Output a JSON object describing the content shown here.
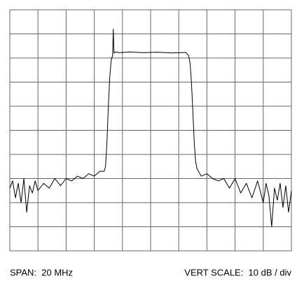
{
  "chart_data": {
    "type": "line",
    "span_label": "SPAN:  20 MHz",
    "scale_label": "VERT SCALE:  10 dB / div",
    "x": [
      -10,
      -9.8,
      -9.6,
      -9.4,
      -9.2,
      -9.0,
      -8.8,
      -8.6,
      -8.4,
      -8.2,
      -8.0,
      -7.6,
      -7.2,
      -6.8,
      -6.4,
      -6.0,
      -5.6,
      -5.2,
      -4.8,
      -4.4,
      -4.0,
      -3.6,
      -3.3,
      -3.2,
      -3.1,
      -3.0,
      -2.9,
      -2.8,
      -2.7,
      -2.65,
      -2.6,
      -2.5,
      -2.2,
      -1.5,
      -0.5,
      0.5,
      1.5,
      2.5,
      2.7,
      2.8,
      2.9,
      3.0,
      3.1,
      3.2,
      3.3,
      3.4,
      3.6,
      4.0,
      4.4,
      4.8,
      5.2,
      5.6,
      6.0,
      6.4,
      6.8,
      7.2,
      7.6,
      8.0,
      8.2,
      8.4,
      8.6,
      8.8,
      9.0,
      9.2,
      9.4,
      9.6,
      9.8,
      10
    ],
    "values": [
      -74,
      -71,
      -78,
      -72,
      -80,
      -70,
      -84,
      -73,
      -76,
      -71,
      -75,
      -72,
      -74,
      -70,
      -73,
      -70,
      -71,
      -69,
      -70,
      -68,
      -69,
      -67,
      -67,
      -65,
      -55,
      -40,
      -28,
      -21,
      -19,
      -8,
      -18,
      -17.5,
      -17.8,
      -17.5,
      -17.8,
      -17.6,
      -17.9,
      -17.7,
      -19,
      -22,
      -30,
      -42,
      -55,
      -63,
      -66,
      -67,
      -69,
      -68,
      -70,
      -71,
      -70,
      -74,
      -70,
      -76,
      -72,
      -78,
      -71,
      -80,
      -72,
      -77,
      -90,
      -74,
      -79,
      -72,
      -82,
      -73,
      -84,
      -75
    ],
    "color": "#000000",
    "xlim": [
      -10,
      10
    ],
    "xticks": [
      -10,
      -8,
      -6,
      -4,
      -2,
      0,
      2,
      4,
      6,
      8,
      10
    ],
    "ylim": [
      -100,
      0
    ],
    "yticks": [
      0,
      -10,
      -20,
      -30,
      -40,
      -50,
      -60,
      -70,
      -80,
      -90,
      -100
    ],
    "grid": true
  }
}
